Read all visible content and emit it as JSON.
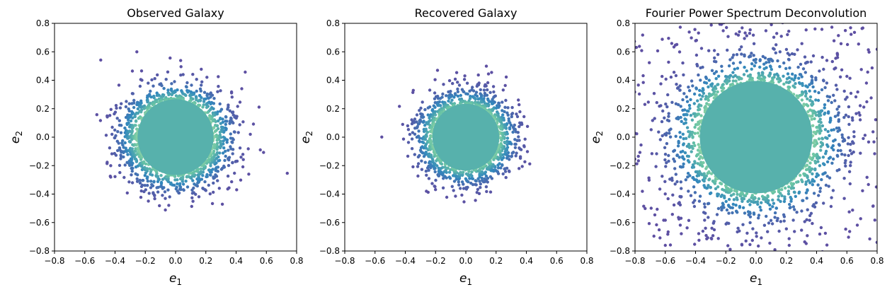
{
  "chart_data": [
    {
      "type": "scatter",
      "title": "Observed Galaxy",
      "xlabel": "e",
      "xlabel_sub": "1",
      "ylabel": "e",
      "ylabel_sub": "2",
      "xlim": [
        -0.8,
        0.8
      ],
      "ylim": [
        -0.8,
        0.8
      ],
      "xticks": [
        "−0.8",
        "−0.6",
        "−0.4",
        "−0.2",
        "0.0",
        "0.2",
        "0.4",
        "0.6",
        "0.8"
      ],
      "yticks": [
        "−0.8",
        "−0.6",
        "−0.4",
        "−0.2",
        "0.0",
        "0.2",
        "0.4",
        "0.6",
        "0.8"
      ],
      "distribution": {
        "center": [
          0.0,
          0.0
        ],
        "sigma": 0.16,
        "n_points": 3200,
        "seed": 11
      },
      "colormap": "Spectral_r density",
      "point_color_outer": "#5e4fa2",
      "point_color_core": "#9e0142",
      "grid": false
    },
    {
      "type": "scatter",
      "title": "Recovered Galaxy",
      "xlabel": "e",
      "xlabel_sub": "1",
      "ylabel": "e",
      "ylabel_sub": "2",
      "xlim": [
        -0.8,
        0.8
      ],
      "ylim": [
        -0.8,
        0.8
      ],
      "xticks": [
        "−0.8",
        "−0.6",
        "−0.4",
        "−0.2",
        "0.0",
        "0.2",
        "0.4",
        "0.6",
        "0.8"
      ],
      "yticks": [
        "−0.8",
        "−0.6",
        "−0.4",
        "−0.2",
        "0.0",
        "0.2",
        "0.4",
        "0.6",
        "0.8"
      ],
      "distribution": {
        "center": [
          0.0,
          0.0
        ],
        "sigma": 0.14,
        "n_points": 3000,
        "seed": 23
      },
      "colormap": "Spectral_r density",
      "point_color_outer": "#5e4fa2",
      "point_color_core": "#9e0142",
      "grid": false
    },
    {
      "type": "scatter",
      "title": "Fourier Power Spectrum Deconvolution",
      "xlabel": "e",
      "xlabel_sub": "1",
      "ylabel": "e",
      "ylabel_sub": "2",
      "xlim": [
        -0.8,
        0.8
      ],
      "ylim": [
        -0.8,
        0.8
      ],
      "xticks": [
        "−0.8",
        "−0.6",
        "−0.4",
        "−0.2",
        "0.0",
        "0.2",
        "0.4",
        "0.6",
        "0.8"
      ],
      "yticks": [
        "−0.8",
        "−0.6",
        "−0.4",
        "−0.2",
        "0.0",
        "0.2",
        "0.4",
        "0.6",
        "0.8"
      ],
      "distribution": {
        "center": [
          0.0,
          0.0
        ],
        "sigma": 0.24,
        "n_points": 3600,
        "seed": 37,
        "wide_tail_fraction": 0.12
      },
      "colormap": "Spectral_r density",
      "point_color_outer": "#5e4fa2",
      "point_color_core": "#9e0142",
      "grid": false
    }
  ]
}
